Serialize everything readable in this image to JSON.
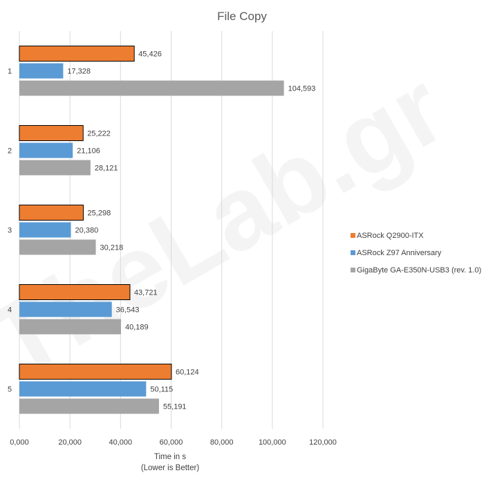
{
  "chart_data": {
    "type": "bar",
    "orientation": "horizontal",
    "title": "File Copy",
    "categories": [
      "1",
      "2",
      "3",
      "4",
      "5"
    ],
    "series": [
      {
        "name": "ASRock Q2900-ITX",
        "color": "#ed7d31",
        "values": [
          45.426,
          25.222,
          25.298,
          43.721,
          60.124
        ]
      },
      {
        "name": "ASRock Z97 Anniversary",
        "color": "#5b9bd5",
        "values": [
          17.328,
          21.106,
          20.38,
          36.543,
          50.115
        ]
      },
      {
        "name": "GigaByte GA-E350N-USB3 (rev. 1.0)",
        "color": "#a5a5a5",
        "values": [
          104.593,
          28.121,
          30.218,
          40.189,
          55.191
        ]
      }
    ],
    "data_labels": [
      [
        "45,426",
        "25,222",
        "25,298",
        "43,721",
        "60,124"
      ],
      [
        "17,328",
        "21,106",
        "20,380",
        "36,543",
        "50,115"
      ],
      [
        "104,593",
        "28,121",
        "30,218",
        "40,189",
        "55,191"
      ]
    ],
    "xlim": [
      0,
      120
    ],
    "xticks": [
      0,
      20,
      40,
      60,
      80,
      100,
      120
    ],
    "xtick_labels": [
      "0,000",
      "20,000",
      "40,000",
      "60,000",
      "80,000",
      "100,000",
      "120,000"
    ],
    "xlabel": "Time in s",
    "xlabel_note": "(Lower is Better)",
    "grid": "vertical",
    "legend_position": "right",
    "watermark": "TheLab.gr"
  }
}
